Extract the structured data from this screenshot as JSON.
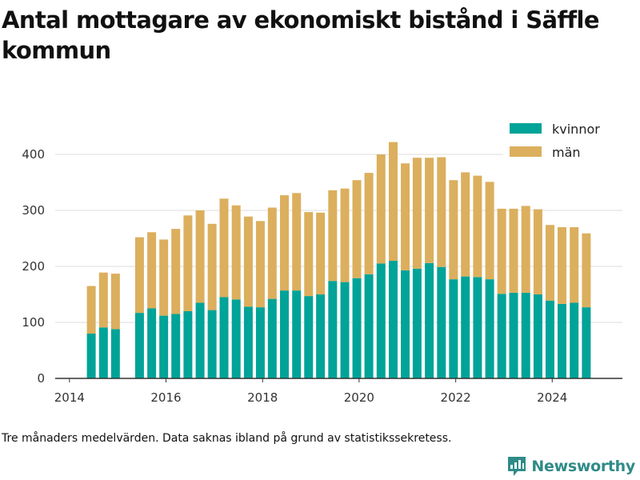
{
  "page": {
    "title": "Antal mottagare av ekonomiskt bistånd i Säffle kommun",
    "footnote": "Tre månaders medelvärden. Data saknas ibland på grund av statistikssekretess.",
    "brand": "Newsworthy"
  },
  "colors": {
    "kvinnor": "#00a398",
    "man": "#dbaf5d",
    "grid": "#dddddd",
    "axis": "#333333",
    "brand": "#2f8b87"
  },
  "chart_data": {
    "type": "bar",
    "stacked": true,
    "title": "Antal mottagare av ekonomiskt bistånd i Säffle kommun",
    "xlabel": "",
    "ylabel": "",
    "x_ticks": [
      "2014",
      "2016",
      "2018",
      "2020",
      "2022",
      "2024"
    ],
    "y_ticks": [
      0,
      100,
      200,
      300,
      400
    ],
    "ylim": [
      0,
      440
    ],
    "xlim": [
      "2013-09-15",
      "2025-06-15"
    ],
    "grid": true,
    "legend_position": "top-right",
    "x": [
      "2014-06-15",
      "2014-09-15",
      "2014-12-15",
      "2015-06-15",
      "2015-09-15",
      "2015-12-15",
      "2016-03-15",
      "2016-06-15",
      "2016-09-15",
      "2016-12-15",
      "2017-03-15",
      "2017-06-15",
      "2017-09-15",
      "2017-12-15",
      "2018-03-15",
      "2018-06-15",
      "2018-09-15",
      "2018-12-15",
      "2019-03-15",
      "2019-06-15",
      "2019-09-15",
      "2019-12-15",
      "2020-03-15",
      "2020-06-15",
      "2020-09-15",
      "2020-12-15",
      "2021-03-15",
      "2021-06-15",
      "2021-09-15",
      "2021-12-15",
      "2022-03-15",
      "2022-06-15",
      "2022-09-15",
      "2022-12-15",
      "2023-03-15",
      "2023-06-15",
      "2023-09-15",
      "2023-12-15",
      "2024-03-15",
      "2024-06-15",
      "2024-09-15"
    ],
    "series": [
      {
        "name": "kvinnor",
        "values": [
          80,
          91,
          88,
          117,
          125,
          112,
          115,
          120,
          135,
          122,
          145,
          141,
          128,
          127,
          142,
          157,
          157,
          147,
          150,
          174,
          172,
          179,
          186,
          205,
          210,
          193,
          196,
          206,
          199,
          177,
          182,
          181,
          177,
          151,
          153,
          153,
          150,
          139,
          133,
          135,
          127
        ]
      },
      {
        "name": "män",
        "values": [
          85,
          98,
          99,
          135,
          136,
          136,
          152,
          171,
          165,
          154,
          176,
          168,
          161,
          154,
          163,
          170,
          174,
          150,
          146,
          162,
          167,
          175,
          181,
          195,
          212,
          191,
          198,
          188,
          196,
          177,
          186,
          181,
          174,
          152,
          150,
          155,
          152,
          135,
          137,
          135,
          132
        ]
      }
    ]
  }
}
